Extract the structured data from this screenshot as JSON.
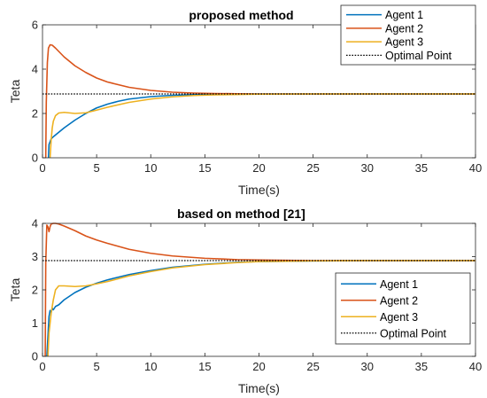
{
  "chart_data": [
    {
      "type": "line",
      "title": "proposed method",
      "xlabel": "Time(s)",
      "ylabel": "Teta",
      "xlim": [
        0,
        40
      ],
      "ylim": [
        0,
        6
      ],
      "xticks": [
        0,
        5,
        10,
        15,
        20,
        25,
        30,
        35,
        40
      ],
      "yticks": [
        0,
        2,
        4,
        6
      ],
      "legend_position": "top-right",
      "series": [
        {
          "name": "Agent 1",
          "color": "#0072BD",
          "x": [
            0.55,
            0.6,
            0.8,
            1,
            1.5,
            2,
            3,
            4,
            5,
            6,
            7,
            8,
            10,
            12,
            14,
            16,
            18,
            20,
            25,
            30,
            40
          ],
          "y": [
            0,
            0.6,
            0.85,
            0.95,
            1.15,
            1.35,
            1.7,
            2.0,
            2.25,
            2.42,
            2.55,
            2.65,
            2.76,
            2.82,
            2.85,
            2.87,
            2.88,
            2.88,
            2.88,
            2.88,
            2.88
          ]
        },
        {
          "name": "Agent 2",
          "color": "#D95319",
          "x": [
            0.3,
            0.35,
            0.45,
            0.55,
            0.7,
            0.9,
            1.2,
            1.5,
            2,
            3,
            4,
            5,
            6,
            8,
            10,
            12,
            14,
            16,
            18,
            20,
            25,
            30,
            40
          ],
          "y": [
            0,
            2.5,
            4.3,
            4.95,
            5.1,
            5.08,
            4.95,
            4.8,
            4.55,
            4.15,
            3.85,
            3.6,
            3.42,
            3.18,
            3.04,
            2.96,
            2.92,
            2.9,
            2.89,
            2.88,
            2.88,
            2.88,
            2.88
          ]
        },
        {
          "name": "Agent 3",
          "color": "#EDB120",
          "x": [
            0.7,
            0.8,
            0.9,
            1.0,
            1.2,
            1.5,
            2,
            3,
            4,
            5,
            6,
            8,
            10,
            12,
            14,
            16,
            20,
            25,
            30,
            40
          ],
          "y": [
            0,
            0.8,
            1.35,
            1.65,
            1.9,
            2.02,
            2.05,
            2.0,
            2.03,
            2.15,
            2.28,
            2.5,
            2.65,
            2.75,
            2.81,
            2.84,
            2.87,
            2.88,
            2.88,
            2.88
          ]
        },
        {
          "name": "Optimal Point",
          "color": "#000000",
          "dashed": true,
          "x": [
            0,
            40
          ],
          "y": [
            2.88,
            2.88
          ]
        }
      ]
    },
    {
      "type": "line",
      "title": "based on method [21]",
      "xlabel": "Time(s)",
      "ylabel": "Teta",
      "xlim": [
        0,
        40
      ],
      "ylim": [
        0,
        4
      ],
      "xticks": [
        0,
        5,
        10,
        15,
        20,
        25,
        30,
        35,
        40
      ],
      "yticks": [
        0,
        1,
        2,
        3,
        4
      ],
      "legend_position": "right",
      "series": [
        {
          "name": "Agent 1",
          "color": "#0072BD",
          "x": [
            0.4,
            0.5,
            0.6,
            0.7,
            0.8,
            0.9,
            1.0,
            1.2,
            1.5,
            2,
            3,
            4,
            5,
            6,
            8,
            10,
            12,
            15,
            18,
            20,
            25,
            30,
            40
          ],
          "y": [
            0,
            0.6,
            1.2,
            1.38,
            1.32,
            1.45,
            1.4,
            1.5,
            1.55,
            1.7,
            1.92,
            2.08,
            2.2,
            2.3,
            2.46,
            2.58,
            2.68,
            2.77,
            2.83,
            2.85,
            2.87,
            2.88,
            2.88
          ]
        },
        {
          "name": "Agent 2",
          "color": "#D95319",
          "x": [
            0.25,
            0.3,
            0.4,
            0.5,
            0.6,
            0.7,
            0.8,
            1.0,
            1.2,
            1.5,
            2,
            3,
            4,
            5,
            6,
            8,
            10,
            12,
            15,
            18,
            20,
            25,
            30,
            40
          ],
          "y": [
            0,
            2.8,
            3.95,
            3.9,
            3.75,
            3.9,
            3.98,
            4.0,
            4.0,
            3.98,
            3.92,
            3.78,
            3.62,
            3.5,
            3.4,
            3.22,
            3.1,
            3.02,
            2.95,
            2.91,
            2.9,
            2.88,
            2.88,
            2.88
          ]
        },
        {
          "name": "Agent 3",
          "color": "#EDB120",
          "x": [
            0.5,
            0.6,
            0.8,
            1.0,
            1.2,
            1.5,
            2,
            3,
            4,
            5,
            6,
            8,
            10,
            12,
            15,
            18,
            20,
            25,
            30,
            40
          ],
          "y": [
            0,
            0.7,
            1.3,
            1.7,
            2.0,
            2.12,
            2.12,
            2.1,
            2.12,
            2.18,
            2.25,
            2.42,
            2.55,
            2.66,
            2.76,
            2.82,
            2.85,
            2.87,
            2.88,
            2.88
          ]
        },
        {
          "name": "Optimal Point",
          "color": "#000000",
          "dashed": true,
          "x": [
            0,
            40
          ],
          "y": [
            2.88,
            2.88
          ]
        }
      ]
    }
  ]
}
